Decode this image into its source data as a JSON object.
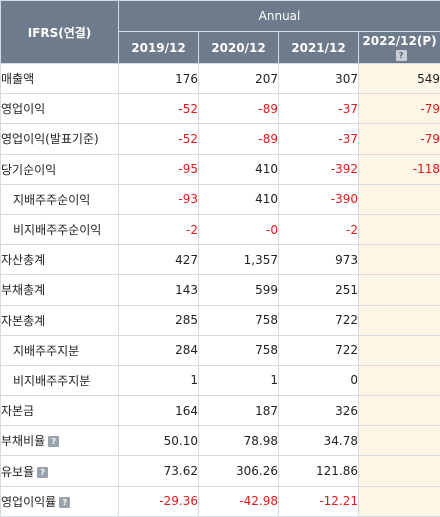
{
  "header": {
    "title": "IFRS(연결)",
    "group": "Annual",
    "years": [
      "2019/12",
      "2020/12",
      "2021/12",
      "2022/12(P)"
    ]
  },
  "rows": [
    {
      "label": "매출액",
      "values": [
        "176",
        "207",
        "307",
        "549"
      ],
      "help": false
    },
    {
      "label": "영업이익",
      "values": [
        "-52",
        "-89",
        "-37",
        "-79"
      ],
      "help": false
    },
    {
      "label": "영업이익(발표기준)",
      "values": [
        "-52",
        "-89",
        "-37",
        "-79"
      ],
      "help": false
    },
    {
      "label": "당기순이익",
      "values": [
        "-95",
        "410",
        "-392",
        "-118"
      ],
      "help": false
    },
    {
      "label": "지배주주순이익",
      "values": [
        "-93",
        "410",
        "-390",
        ""
      ],
      "help": false
    },
    {
      "label": "비지배주주순이익",
      "values": [
        "-2",
        "-0",
        "-2",
        ""
      ],
      "help": false
    },
    {
      "label": "자산총계",
      "values": [
        "427",
        "1,357",
        "973",
        ""
      ],
      "help": false
    },
    {
      "label": "부채총계",
      "values": [
        "143",
        "599",
        "251",
        ""
      ],
      "help": false
    },
    {
      "label": "자본총계",
      "values": [
        "285",
        "758",
        "722",
        ""
      ],
      "help": false
    },
    {
      "label": "지배주주지분",
      "values": [
        "284",
        "758",
        "722",
        ""
      ],
      "help": false
    },
    {
      "label": "비지배주주지분",
      "values": [
        "1",
        "1",
        "0",
        ""
      ],
      "help": false
    },
    {
      "label": "자본금",
      "values": [
        "164",
        "187",
        "326",
        ""
      ],
      "help": false
    },
    {
      "label": "부채비율",
      "values": [
        "50.10",
        "78.98",
        "34.78",
        ""
      ],
      "help": true
    },
    {
      "label": "유보율",
      "values": [
        "73.62",
        "306.26",
        "121.86",
        ""
      ],
      "help": true
    },
    {
      "label": "영업이익률",
      "values": [
        "-29.36",
        "-42.98",
        "-12.21",
        ""
      ],
      "help": true
    }
  ],
  "colors": {
    "header_bg": "#6d7b8d",
    "negative": "#e0191d",
    "estimate_bg": "#fdf5e6",
    "border": "#d6dbe2"
  },
  "icons": {
    "help": "question-icon",
    "help_glyph": "?"
  }
}
